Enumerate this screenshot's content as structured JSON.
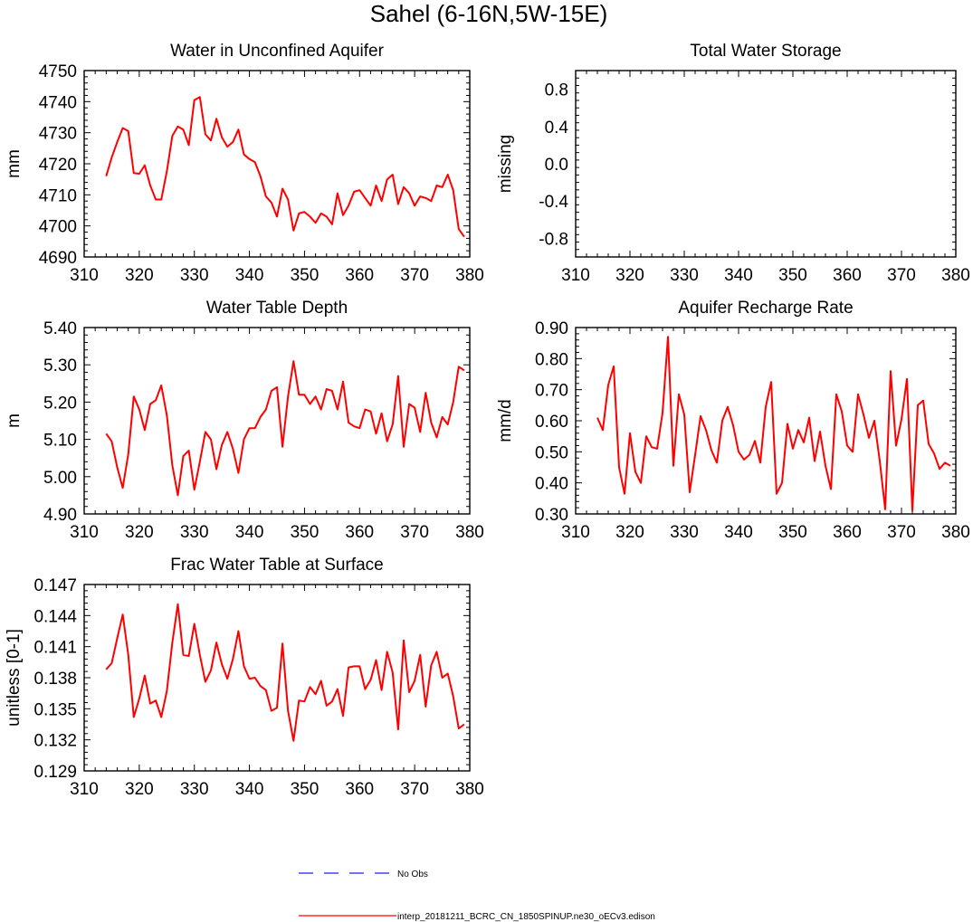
{
  "figure": {
    "title": "Sahel (6-16N,5W-15E)",
    "legend": [
      {
        "label": "No Obs",
        "color": "#1f1fff",
        "style": "dashed"
      },
      {
        "label": "interp_20181211_BCRC_CN_1850SPINUP.ne30_oECv3.edison",
        "color": "#ff0000",
        "style": "solid"
      }
    ]
  },
  "chart_data": [
    {
      "type": "line",
      "title": "Water in Unconfined Aquifer",
      "ylabel": "mm",
      "xlabel": "",
      "xlim": [
        310,
        380
      ],
      "ylim": [
        4690,
        4750
      ],
      "xticks": [
        "310",
        "320",
        "330",
        "340",
        "350",
        "360",
        "370",
        "380"
      ],
      "yticks": [
        "4690",
        "4700",
        "4710",
        "4720",
        "4730",
        "4740",
        "4750"
      ],
      "series": [
        {
          "name": "interp_20181211_BCRC_CN_1850SPINUP.ne30_oECv3.edison",
          "color": "#ff0000",
          "x": [
            314,
            315,
            316,
            317,
            318,
            319,
            320,
            321,
            322,
            323,
            324,
            325,
            326,
            327,
            328,
            329,
            330,
            331,
            332,
            333,
            334,
            335,
            336,
            337,
            338,
            339,
            340,
            341,
            342,
            343,
            344,
            345,
            346,
            347,
            348,
            349,
            350,
            351,
            352,
            353,
            354,
            355,
            356,
            357,
            358,
            359,
            360,
            361,
            362,
            363,
            364,
            365,
            366,
            367,
            368,
            369,
            370,
            371,
            372,
            373,
            374,
            375,
            376,
            377,
            378,
            379
          ],
          "values": [
            4716,
            4722,
            4727,
            4731.5,
            4730.5,
            4717,
            4716.8,
            4719.5,
            4713,
            4708.5,
            4708.5,
            4717.5,
            4729,
            4732,
            4731,
            4726,
            4740.5,
            4741.5,
            4729.5,
            4727.5,
            4734.5,
            4728.5,
            4725.5,
            4727,
            4731,
            4723,
            4721.5,
            4720.5,
            4716,
            4709.5,
            4707.5,
            4703,
            4712,
            4708.5,
            4698.5,
            4704,
            4704.5,
            4703,
            4701,
            4704,
            4703,
            4700.5,
            4710.5,
            4703.5,
            4706.5,
            4711,
            4711.5,
            4709,
            4706.5,
            4713,
            4708,
            4715,
            4716.5,
            4707,
            4712.5,
            4710.5,
            4706.5,
            4709.5,
            4709,
            4708,
            4713,
            4712.5,
            4716.5,
            4711.5,
            4699,
            4696.5
          ]
        }
      ]
    },
    {
      "type": "line",
      "title": "Total Water Storage",
      "ylabel": "missing",
      "xlabel": "",
      "xlim": [
        310,
        380
      ],
      "ylim": [
        -1.0,
        1.0
      ],
      "xticks": [
        "310",
        "320",
        "330",
        "340",
        "350",
        "360",
        "370",
        "380"
      ],
      "yticks": [
        "-0.8",
        "-0.4",
        "0.0",
        "0.4",
        "0.8"
      ],
      "series": []
    },
    {
      "type": "line",
      "title": "Water Table Depth",
      "ylabel": "m",
      "xlabel": "",
      "xlim": [
        310,
        380
      ],
      "ylim": [
        4.9,
        5.4
      ],
      "xticks": [
        "310",
        "320",
        "330",
        "340",
        "350",
        "360",
        "370",
        "380"
      ],
      "yticks": [
        "4.90",
        "5.00",
        "5.10",
        "5.20",
        "5.30",
        "5.40"
      ],
      "series": [
        {
          "name": "interp_20181211_BCRC_CN_1850SPINUP.ne30_oECv3.edison",
          "color": "#ff0000",
          "x": [
            314,
            315,
            316,
            317,
            318,
            319,
            320,
            321,
            322,
            323,
            324,
            325,
            326,
            327,
            328,
            329,
            330,
            331,
            332,
            333,
            334,
            335,
            336,
            337,
            338,
            339,
            340,
            341,
            342,
            343,
            344,
            345,
            346,
            347,
            348,
            349,
            350,
            351,
            352,
            353,
            354,
            355,
            356,
            357,
            358,
            359,
            360,
            361,
            362,
            363,
            364,
            365,
            366,
            367,
            368,
            369,
            370,
            371,
            372,
            373,
            374,
            375,
            376,
            377,
            378,
            379
          ],
          "values": [
            5.115,
            5.095,
            5.025,
            4.97,
            5.06,
            5.215,
            5.18,
            5.125,
            5.195,
            5.205,
            5.245,
            5.165,
            5.03,
            4.95,
            5.055,
            5.07,
            4.965,
            5.04,
            5.12,
            5.1,
            5.02,
            5.085,
            5.12,
            5.075,
            5.01,
            5.1,
            5.13,
            5.13,
            5.16,
            5.18,
            5.23,
            5.24,
            5.08,
            5.215,
            5.31,
            5.22,
            5.22,
            5.195,
            5.215,
            5.18,
            5.235,
            5.23,
            5.18,
            5.255,
            5.145,
            5.135,
            5.13,
            5.18,
            5.175,
            5.115,
            5.17,
            5.095,
            5.14,
            5.27,
            5.08,
            5.195,
            5.185,
            5.12,
            5.225,
            5.145,
            5.105,
            5.16,
            5.14,
            5.2,
            5.295,
            5.285
          ]
        }
      ]
    },
    {
      "type": "line",
      "title": "Aquifer Recharge Rate",
      "ylabel": "mm/d",
      "xlabel": "",
      "xlim": [
        310,
        380
      ],
      "ylim": [
        0.3,
        0.9
      ],
      "xticks": [
        "310",
        "320",
        "330",
        "340",
        "350",
        "360",
        "370",
        "380"
      ],
      "yticks": [
        "0.30",
        "0.40",
        "0.50",
        "0.60",
        "0.70",
        "0.80",
        "0.90"
      ],
      "series": [
        {
          "name": "interp_20181211_BCRC_CN_1850SPINUP.ne30_oECv3.edison",
          "color": "#ff0000",
          "x": [
            314,
            315,
            316,
            317,
            318,
            319,
            320,
            321,
            322,
            323,
            324,
            325,
            326,
            327,
            328,
            329,
            330,
            331,
            332,
            333,
            334,
            335,
            336,
            337,
            338,
            339,
            340,
            341,
            342,
            343,
            344,
            345,
            346,
            347,
            348,
            349,
            350,
            351,
            352,
            353,
            354,
            355,
            356,
            357,
            358,
            359,
            360,
            361,
            362,
            363,
            364,
            365,
            366,
            367,
            368,
            369,
            370,
            371,
            372,
            373,
            374,
            375,
            376,
            377,
            378,
            379
          ],
          "values": [
            0.61,
            0.57,
            0.715,
            0.775,
            0.45,
            0.365,
            0.56,
            0.435,
            0.4,
            0.55,
            0.515,
            0.51,
            0.625,
            0.87,
            0.455,
            0.685,
            0.62,
            0.37,
            0.49,
            0.615,
            0.57,
            0.505,
            0.465,
            0.6,
            0.645,
            0.585,
            0.5,
            0.475,
            0.49,
            0.535,
            0.465,
            0.645,
            0.725,
            0.365,
            0.4,
            0.59,
            0.51,
            0.57,
            0.53,
            0.61,
            0.47,
            0.565,
            0.455,
            0.38,
            0.685,
            0.63,
            0.52,
            0.5,
            0.685,
            0.62,
            0.545,
            0.6,
            0.47,
            0.315,
            0.76,
            0.52,
            0.605,
            0.735,
            0.31,
            0.65,
            0.665,
            0.525,
            0.495,
            0.445,
            0.465,
            0.455
          ]
        }
      ]
    },
    {
      "type": "line",
      "title": "Frac Water Table at Surface",
      "ylabel": "unitless [0-1]",
      "xlabel": "",
      "xlim": [
        310,
        380
      ],
      "ylim": [
        0.129,
        0.147
      ],
      "xticks": [
        "310",
        "320",
        "330",
        "340",
        "350",
        "360",
        "370",
        "380"
      ],
      "yticks": [
        "0.129",
        "0.132",
        "0.135",
        "0.138",
        "0.141",
        "0.144",
        "0.147"
      ],
      "series": [
        {
          "name": "interp_20181211_BCRC_CN_1850SPINUP.ne30_oECv3.edison",
          "color": "#ff0000",
          "x": [
            314,
            315,
            316,
            317,
            318,
            319,
            320,
            321,
            322,
            323,
            324,
            325,
            326,
            327,
            328,
            329,
            330,
            331,
            332,
            333,
            334,
            335,
            336,
            337,
            338,
            339,
            340,
            341,
            342,
            343,
            344,
            345,
            346,
            347,
            348,
            349,
            350,
            351,
            352,
            353,
            354,
            355,
            356,
            357,
            358,
            359,
            360,
            361,
            362,
            363,
            364,
            365,
            366,
            367,
            368,
            369,
            370,
            371,
            372,
            373,
            374,
            375,
            376,
            377,
            378,
            379
          ],
          "values": [
            0.1388,
            0.1394,
            0.1418,
            0.1441,
            0.1402,
            0.1342,
            0.136,
            0.1382,
            0.1355,
            0.1358,
            0.1342,
            0.1367,
            0.1414,
            0.1451,
            0.1402,
            0.1401,
            0.1432,
            0.1402,
            0.1376,
            0.1387,
            0.1414,
            0.1393,
            0.1379,
            0.1398,
            0.1425,
            0.1391,
            0.1379,
            0.138,
            0.1372,
            0.1368,
            0.1348,
            0.1351,
            0.1413,
            0.1348,
            0.1319,
            0.1358,
            0.1357,
            0.1371,
            0.1364,
            0.1377,
            0.1353,
            0.1357,
            0.1369,
            0.1343,
            0.139,
            0.1391,
            0.1391,
            0.1369,
            0.1378,
            0.1397,
            0.1368,
            0.1405,
            0.1385,
            0.133,
            0.1416,
            0.1366,
            0.1377,
            0.1402,
            0.1352,
            0.1392,
            0.1405,
            0.138,
            0.1384,
            0.1362,
            0.1331,
            0.1335
          ]
        }
      ]
    }
  ]
}
